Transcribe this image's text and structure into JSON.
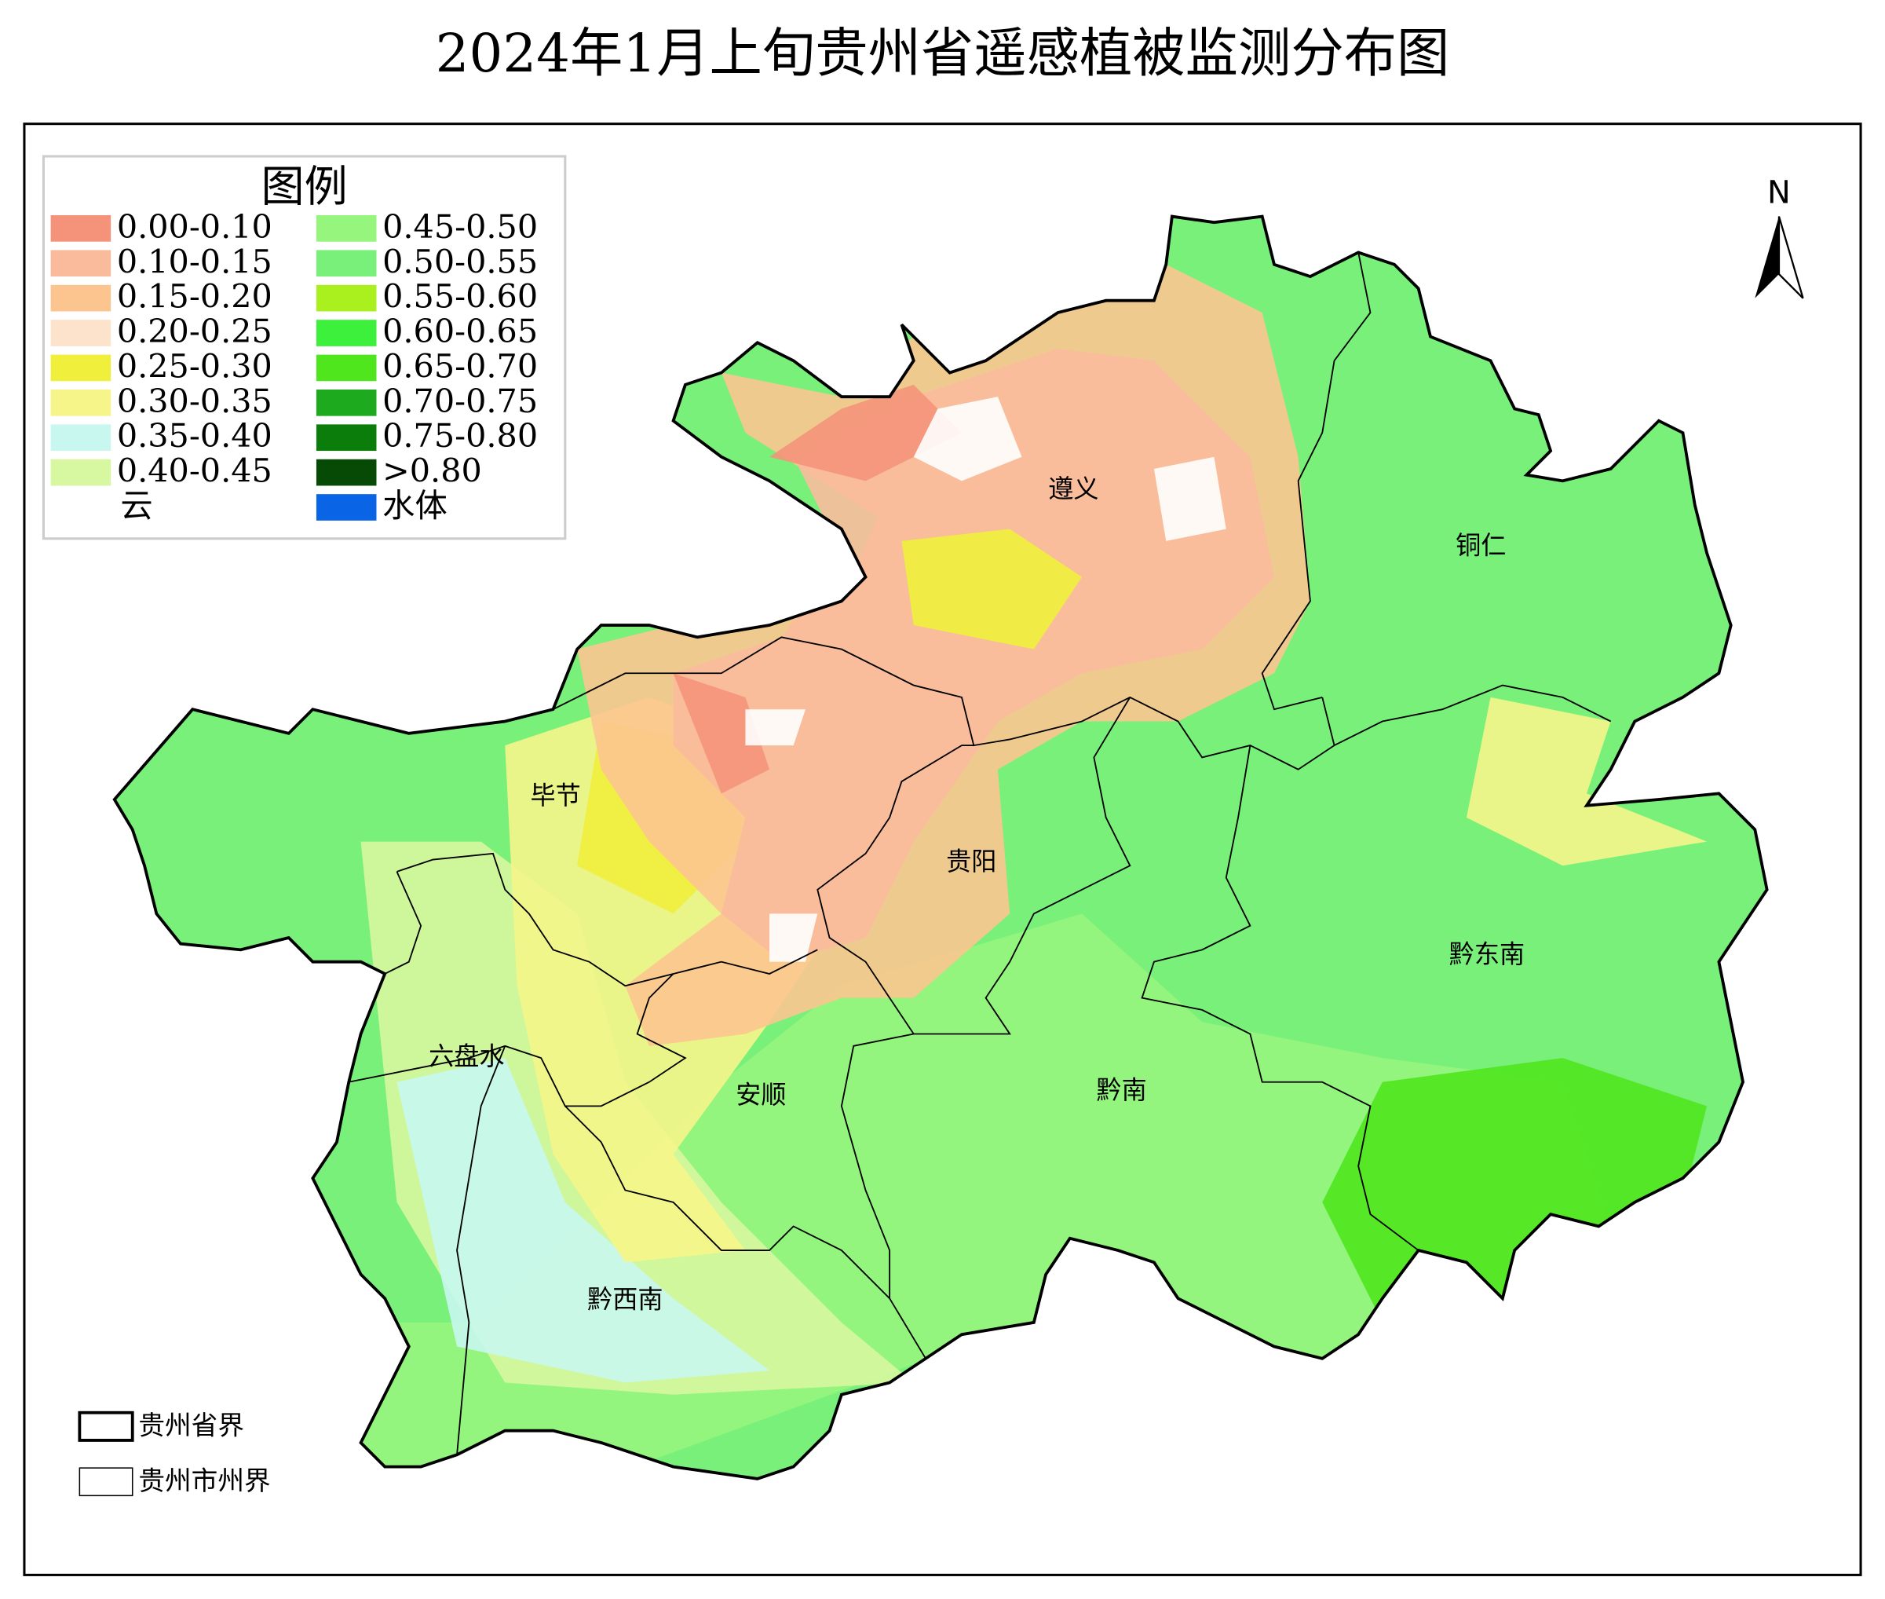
{
  "title": "2024年1月上旬贵州省遥感植被监测分布图",
  "legend": {
    "title": "图例",
    "items": [
      {
        "label": "0.00-0.10",
        "color": "#f4937a"
      },
      {
        "label": "0.10-0.15",
        "color": "#f9bb9c"
      },
      {
        "label": "0.15-0.20",
        "color": "#fcc590"
      },
      {
        "label": "0.20-0.25",
        "color": "#fde3cb"
      },
      {
        "label": "0.25-0.30",
        "color": "#f0f03c"
      },
      {
        "label": "0.30-0.35",
        "color": "#f5f58a"
      },
      {
        "label": "0.35-0.40",
        "color": "#c8f7ef"
      },
      {
        "label": "0.40-0.45",
        "color": "#d7f7a0"
      },
      {
        "label": "0.45-0.50",
        "color": "#96f57d"
      },
      {
        "label": "0.50-0.55",
        "color": "#78f07a"
      },
      {
        "label": "0.55-0.60",
        "color": "#aaf01e"
      },
      {
        "label": "0.60-0.65",
        "color": "#3cf03c"
      },
      {
        "label": "0.65-0.70",
        "color": "#50e61e"
      },
      {
        "label": "0.70-0.75",
        "color": "#1eaa1e"
      },
      {
        "label": "0.75-0.80",
        "color": "#0a7d0a"
      },
      {
        "label": ">0.80",
        "color": "#064a06"
      },
      {
        "label": "云",
        "color": "#ffffff"
      },
      {
        "label": "水体",
        "color": "#0a64e6"
      }
    ]
  },
  "cities": [
    "遵义",
    "铜仁",
    "毕节",
    "贵阳",
    "黔东南",
    "六盘水",
    "安顺",
    "黔南",
    "黔西南"
  ],
  "north": "N",
  "boundary_legend": [
    "贵州省界",
    "贵州市州界"
  ]
}
